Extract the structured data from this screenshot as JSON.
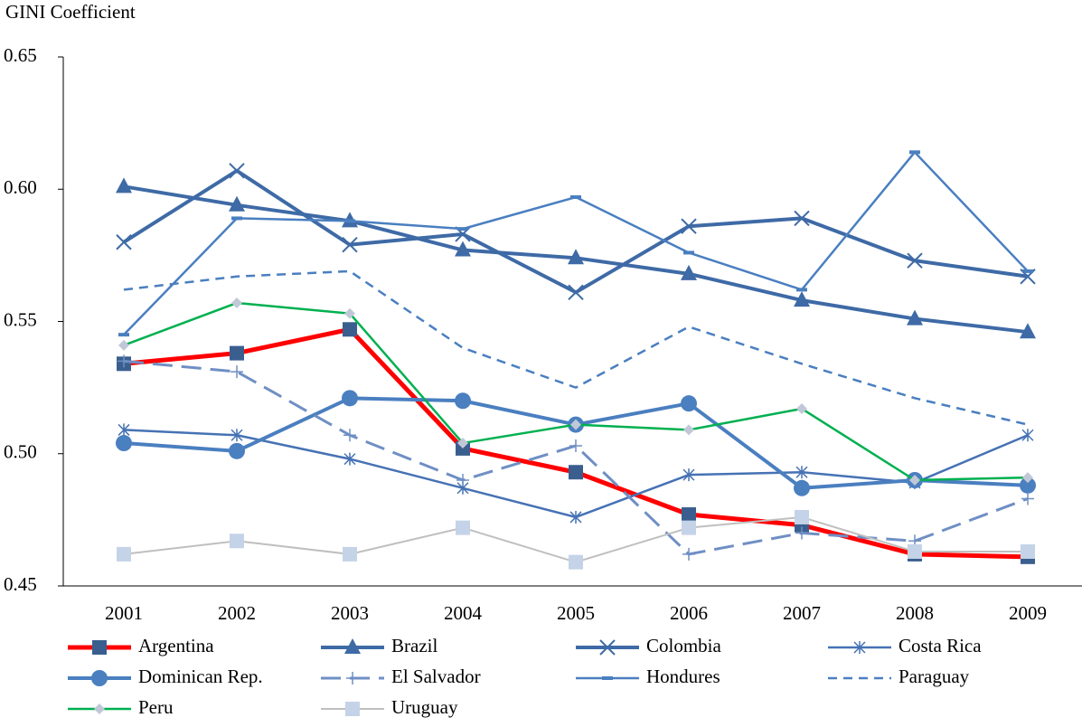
{
  "chart_data": {
    "type": "line",
    "y_label": "GINI Coefficient",
    "categories": [
      "2001",
      "2002",
      "2003",
      "2004",
      "2005",
      "2006",
      "2007",
      "2008",
      "2009"
    ],
    "ylim": [
      0.45,
      0.65
    ],
    "yticks": [
      0.45,
      {
        "value": 0.5,
        "label": "0.50"
      },
      0.55,
      {
        "value": 0.6,
        "label": "0.60"
      },
      0.65
    ],
    "series": [
      {
        "name": "Argentina",
        "color": "#ff0000",
        "marker": "square",
        "width": 5,
        "dash": "none",
        "marker_color": "#3a5f8f",
        "values": [
          0.534,
          0.538,
          0.547,
          0.502,
          0.493,
          0.477,
          0.473,
          0.462,
          0.461
        ]
      },
      {
        "name": "Brazil",
        "color": "#3e6aa6",
        "marker": "triangle",
        "width": 4,
        "dash": "none",
        "values": [
          0.601,
          0.594,
          0.588,
          0.577,
          0.574,
          0.568,
          0.558,
          0.551,
          0.546
        ]
      },
      {
        "name": "Colombia",
        "color": "#3e6aa6",
        "marker": "x",
        "width": 4,
        "dash": "none",
        "values": [
          0.58,
          0.607,
          0.579,
          0.583,
          0.561,
          0.586,
          0.589,
          0.573,
          0.567
        ]
      },
      {
        "name": "Costa Rica",
        "color": "#4672b4",
        "marker": "star",
        "width": 2.5,
        "dash": "none",
        "values": [
          0.509,
          0.507,
          0.498,
          0.487,
          0.476,
          0.492,
          0.493,
          0.489,
          0.507
        ]
      },
      {
        "name": "Dominican Rep.",
        "color": "#4a7fc0",
        "marker": "circle",
        "width": 4,
        "dash": "none",
        "values": [
          0.504,
          0.501,
          0.521,
          0.52,
          0.511,
          0.519,
          0.487,
          0.49,
          0.488
        ]
      },
      {
        "name": "El Salvador",
        "color": "#6f8fc4",
        "marker": "plus",
        "width": 3,
        "dash": "22 10",
        "values": [
          0.535,
          0.531,
          0.507,
          0.49,
          0.503,
          0.462,
          0.47,
          0.467,
          0.483
        ]
      },
      {
        "name": "Hondures",
        "color": "#4a7fc0",
        "marker": "dash",
        "width": 2.5,
        "dash": "none",
        "values": [
          0.545,
          0.589,
          0.588,
          0.585,
          0.597,
          0.576,
          0.562,
          0.614,
          0.569
        ]
      },
      {
        "name": "Paraguay",
        "color": "#4a7fc0",
        "marker": "none",
        "width": 2.5,
        "dash": "10 7",
        "values": [
          0.562,
          0.567,
          0.569,
          0.54,
          0.525,
          0.548,
          0.534,
          0.521,
          0.511
        ]
      },
      {
        "name": "Peru",
        "color": "#00b050",
        "marker": "diamond",
        "width": 2.5,
        "dash": "none",
        "marker_color": "#c0c8d8",
        "values": [
          0.541,
          0.557,
          0.553,
          0.504,
          0.511,
          0.509,
          0.517,
          0.49,
          0.491
        ]
      },
      {
        "name": "Uruguay",
        "color": "#bfbfbf",
        "marker": "square",
        "width": 2,
        "dash": "none",
        "marker_color": "#c5d3e8",
        "values": [
          0.462,
          0.467,
          0.462,
          0.472,
          0.459,
          0.472,
          0.476,
          0.463,
          0.463
        ]
      }
    ]
  }
}
